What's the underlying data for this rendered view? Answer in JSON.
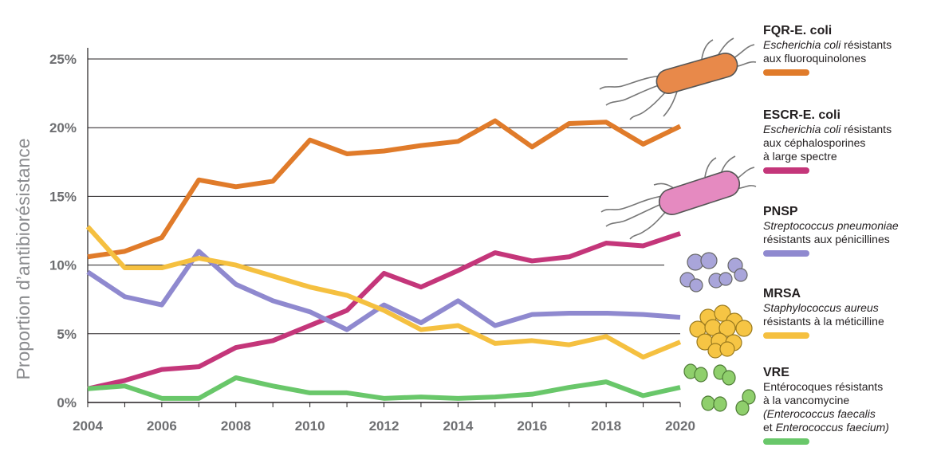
{
  "chart_data": {
    "type": "line",
    "title": "",
    "xlabel": "",
    "ylabel": "Proportion d’antibiorésistance",
    "x": [
      2004,
      2005,
      2006,
      2007,
      2008,
      2009,
      2010,
      2011,
      2012,
      2013,
      2014,
      2015,
      2016,
      2017,
      2018,
      2019,
      2020
    ],
    "xlim": [
      2004,
      2020
    ],
    "ylim": [
      0,
      25
    ],
    "x_tick_labels": [
      "2004",
      "2006",
      "2008",
      "2010",
      "2012",
      "2014",
      "2016",
      "2018",
      "2020"
    ],
    "y_tick_labels": [
      "0%",
      "5%",
      "10%",
      "15%",
      "20%",
      "25%"
    ],
    "grid": "horizontal",
    "legend_position": "right",
    "series": [
      {
        "name": "FQR-E. coli",
        "color": "#e07b2a",
        "values": [
          10.6,
          11.0,
          12.0,
          16.2,
          15.7,
          16.1,
          19.1,
          18.1,
          18.3,
          18.7,
          19.0,
          20.5,
          18.6,
          20.3,
          20.4,
          18.8,
          20.1
        ]
      },
      {
        "name": "ESCR-E. coli",
        "color": "#c4367a",
        "values": [
          1.0,
          1.6,
          2.4,
          2.6,
          4.0,
          4.5,
          5.6,
          6.7,
          9.4,
          8.4,
          9.6,
          10.9,
          10.3,
          10.6,
          11.6,
          11.4,
          12.3
        ]
      },
      {
        "name": "PNSP",
        "color": "#8f89cf",
        "values": [
          9.5,
          7.7,
          7.1,
          11.0,
          8.6,
          7.4,
          6.6,
          5.3,
          7.1,
          5.8,
          7.4,
          5.6,
          6.4,
          6.5,
          6.5,
          6.4,
          6.2
        ]
      },
      {
        "name": "MRSA",
        "color": "#f5c040",
        "values": [
          12.8,
          9.8,
          9.8,
          10.5,
          10.0,
          9.2,
          8.4,
          7.8,
          6.7,
          5.3,
          5.6,
          4.3,
          4.5,
          4.2,
          4.8,
          3.3,
          4.4
        ]
      },
      {
        "name": "VRE",
        "color": "#69c76a",
        "values": [
          1.0,
          1.2,
          0.3,
          0.3,
          1.8,
          1.2,
          0.7,
          0.7,
          0.3,
          0.4,
          0.3,
          0.4,
          0.6,
          1.1,
          1.5,
          0.5,
          1.1
        ]
      }
    ]
  },
  "legend": [
    {
      "abbr": "FQR-E. coli",
      "italic": "Escherichia coli",
      "desc": " résistants",
      "desc2": "aux fluoroquinolones",
      "desc3": "",
      "color": "#e07b2a"
    },
    {
      "abbr": "ESCR-E. coli",
      "italic": "Escherichia coli",
      "desc": " résistants",
      "desc2": "aux céphalosporines",
      "desc3": "à large spectre",
      "color": "#c4367a"
    },
    {
      "abbr": "PNSP",
      "italic": "Streptococcus pneumoniae",
      "desc": "",
      "desc2": "résistants aux pénicillines",
      "desc3": "",
      "color": "#8f89cf"
    },
    {
      "abbr": "MRSA",
      "italic": "Staphylococcus aureus",
      "desc": "",
      "desc2": "résistants à la méticilline",
      "desc3": "",
      "color": "#f5c040"
    },
    {
      "abbr": "VRE",
      "italic": "",
      "desc": "Entérocoques résistants",
      "desc2": "à la vancomycine",
      "desc3": "",
      "desc4a": "(Enterococcus faecalis",
      "desc4b": "et ",
      "desc4c": "Enterococcus faecium)",
      "color": "#69c76a"
    }
  ]
}
